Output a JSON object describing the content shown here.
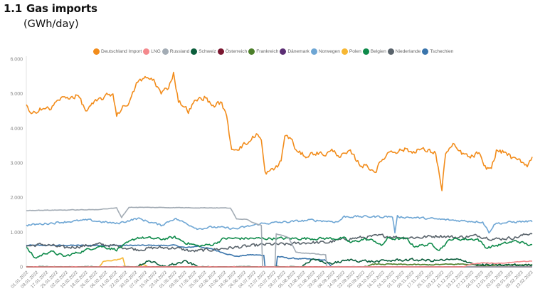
{
  "header": {
    "section_number": "1.1",
    "title": "Gas imports",
    "unit": "(GWh/day)"
  },
  "chart_data": {
    "type": "line",
    "title": "Gas imports",
    "ylabel": "GWh/day",
    "xlabel": "",
    "ylim": [
      0,
      6000
    ],
    "y_ticks": [
      0,
      1000,
      2000,
      3000,
      4000,
      5000,
      6000
    ],
    "y_tick_labels": [
      "0",
      "1.000",
      "2.000",
      "3.000",
      "4.000",
      "5.000",
      "6.000"
    ],
    "grid": false,
    "legend_position": "top-center",
    "x_range": [
      "01.01.2022",
      "14.02.2023"
    ],
    "x_tick_labels": [
      "01.01.2022",
      "09.01.2022",
      "17.01.2022",
      "25.01.2022",
      "02.02.2022",
      "10.02.2022",
      "18.02.2022",
      "26.02.2022",
      "06.03.2022",
      "14.03.2022",
      "22.03.2022",
      "30.03.2022",
      "07.04.2022",
      "15.04.2022",
      "23.04.2022",
      "01.05.2022",
      "09.05.2022",
      "17.05.2022",
      "25.05.2022",
      "02.06.2022",
      "10.06.2022",
      "18.06.2022",
      "26.06.2022",
      "04.07.2022",
      "12.07.2022",
      "20.07.2022",
      "28.07.2022",
      "05.08.2022",
      "13.08.2022",
      "21.08.2022",
      "29.08.2022",
      "06.09.2022",
      "14.09.2022",
      "22.09.2022",
      "30.09.2022",
      "08.10.2022",
      "16.10.2022",
      "24.10.2022",
      "01.11.2022",
      "09.11.2022",
      "17.11.2022",
      "25.11.2022",
      "03.12.2022",
      "11.12.2022",
      "19.12.2022",
      "27.12.2022",
      "04.01.2023",
      "12.01.2023",
      "20.01.2023",
      "28.01.2023",
      "05.02.2023",
      "13.02.2023"
    ],
    "series": [
      {
        "name": "Deutschland Import",
        "color": "#F28C1B",
        "noise": 90,
        "points": [
          [
            "01.01.2022",
            4650
          ],
          [
            "05.01.2022",
            4350
          ],
          [
            "12.01.2022",
            4600
          ],
          [
            "20.01.2022",
            4550
          ],
          [
            "28.01.2022",
            4850
          ],
          [
            "05.02.2022",
            4900
          ],
          [
            "12.02.2022",
            4950
          ],
          [
            "18.02.2022",
            4500
          ],
          [
            "24.02.2022",
            4700
          ],
          [
            "02.03.2022",
            4850
          ],
          [
            "08.03.2022",
            4950
          ],
          [
            "12.03.2022",
            5000
          ],
          [
            "15.03.2022",
            4400
          ],
          [
            "20.03.2022",
            4600
          ],
          [
            "26.03.2022",
            4800
          ],
          [
            "01.04.2022",
            5350
          ],
          [
            "08.04.2022",
            5450
          ],
          [
            "14.04.2022",
            5400
          ],
          [
            "20.04.2022",
            5000
          ],
          [
            "26.04.2022",
            5200
          ],
          [
            "30.04.2022",
            5600
          ],
          [
            "04.05.2022",
            4800
          ],
          [
            "12.05.2022",
            4500
          ],
          [
            "18.05.2022",
            4800
          ],
          [
            "25.05.2022",
            4900
          ],
          [
            "01.06.2022",
            4650
          ],
          [
            "08.06.2022",
            4750
          ],
          [
            "12.06.2022",
            4300
          ],
          [
            "16.06.2022",
            3400
          ],
          [
            "22.06.2022",
            3450
          ],
          [
            "30.06.2022",
            3600
          ],
          [
            "06.07.2022",
            3850
          ],
          [
            "10.07.2022",
            3650
          ],
          [
            "13.07.2022",
            2700
          ],
          [
            "20.07.2022",
            2800
          ],
          [
            "26.07.2022",
            3050
          ],
          [
            "29.07.2022",
            3800
          ],
          [
            "03.08.2022",
            3700
          ],
          [
            "08.08.2022",
            3300
          ],
          [
            "16.08.2022",
            3200
          ],
          [
            "22.08.2022",
            3300
          ],
          [
            "30.08.2022",
            3250
          ],
          [
            "06.09.2022",
            3350
          ],
          [
            "12.09.2022",
            3200
          ],
          [
            "20.09.2022",
            3300
          ],
          [
            "28.09.2022",
            2950
          ],
          [
            "04.10.2022",
            2900
          ],
          [
            "10.10.2022",
            2750
          ],
          [
            "16.10.2022",
            3100
          ],
          [
            "22.10.2022",
            3350
          ],
          [
            "28.10.2022",
            3350
          ],
          [
            "04.11.2022",
            3400
          ],
          [
            "09.11.2022",
            3300
          ],
          [
            "13.11.2022",
            3400
          ],
          [
            "21.11.2022",
            3350
          ],
          [
            "28.11.2022",
            3300
          ],
          [
            "03.12.2022",
            2200
          ],
          [
            "06.12.2022",
            3300
          ],
          [
            "12.12.2022",
            3500
          ],
          [
            "18.12.2022",
            3300
          ],
          [
            "26.12.2022",
            3150
          ],
          [
            "02.01.2023",
            3300
          ],
          [
            "06.01.2023",
            2850
          ],
          [
            "12.01.2023",
            2850
          ],
          [
            "16.01.2023",
            3350
          ],
          [
            "24.01.2023",
            3300
          ],
          [
            "30.01.2023",
            3100
          ],
          [
            "05.02.2023",
            3050
          ],
          [
            "10.02.2023",
            2950
          ],
          [
            "15.02.2023",
            3200
          ]
        ]
      },
      {
        "name": "LNG",
        "color": "#F4898D",
        "noise": 15,
        "points": [
          [
            "01.01.2022",
            0
          ],
          [
            "20.12.2022",
            0
          ],
          [
            "28.12.2022",
            90
          ],
          [
            "06.01.2023",
            120
          ],
          [
            "16.01.2023",
            100
          ],
          [
            "26.01.2023",
            120
          ],
          [
            "05.02.2023",
            150
          ],
          [
            "15.02.2023",
            170
          ]
        ]
      },
      {
        "name": "Russland",
        "color": "#A3ACB5",
        "noise": 10,
        "points": [
          [
            "01.01.2022",
            1630
          ],
          [
            "25.02.2022",
            1650
          ],
          [
            "15.03.2022",
            1700
          ],
          [
            "19.03.2022",
            1430
          ],
          [
            "25.03.2022",
            1720
          ],
          [
            "15.06.2022",
            1700
          ],
          [
            "20.06.2022",
            1380
          ],
          [
            "28.06.2022",
            1380
          ],
          [
            "02.07.2022",
            1300
          ],
          [
            "10.07.2022",
            1200
          ],
          [
            "11.07.2022",
            0
          ],
          [
            "21.07.2022",
            0
          ],
          [
            "22.07.2022",
            950
          ],
          [
            "01.08.2022",
            850
          ],
          [
            "07.08.2022",
            420
          ],
          [
            "31.08.2022",
            350
          ],
          [
            "01.09.2022",
            0
          ],
          [
            "15.02.2023",
            0
          ]
        ]
      },
      {
        "name": "Schweiz",
        "color": "#0C5E3C",
        "noise": 50,
        "points": [
          [
            "01.01.2022",
            0
          ],
          [
            "01.04.2022",
            0
          ],
          [
            "10.04.2022",
            200
          ],
          [
            "20.04.2022",
            0
          ],
          [
            "10.05.2022",
            150
          ],
          [
            "20.05.2022",
            0
          ],
          [
            "10.08.2022",
            0
          ],
          [
            "20.08.2022",
            200
          ],
          [
            "05.09.2022",
            100
          ],
          [
            "20.09.2022",
            200
          ],
          [
            "10.10.2022",
            150
          ],
          [
            "30.10.2022",
            200
          ],
          [
            "15.11.2022",
            200
          ],
          [
            "25.11.2022",
            180
          ],
          [
            "10.12.2022",
            200
          ],
          [
            "20.12.2022",
            200
          ],
          [
            "01.01.2023",
            50
          ],
          [
            "15.02.2023",
            50
          ]
        ]
      },
      {
        "name": "Österreich",
        "color": "#7A1730",
        "noise": 8,
        "points": [
          [
            "01.01.2022",
            0
          ],
          [
            "15.02.2023",
            0
          ]
        ]
      },
      {
        "name": "Frankreich",
        "color": "#4C7F2A",
        "noise": 20,
        "points": [
          [
            "01.01.2022",
            0
          ],
          [
            "01.10.2022",
            0
          ],
          [
            "10.10.2022",
            80
          ],
          [
            "20.11.2022",
            60
          ],
          [
            "20.12.2022",
            80
          ],
          [
            "05.01.2023",
            40
          ],
          [
            "28.01.2023",
            60
          ],
          [
            "15.02.2023",
            60
          ]
        ]
      },
      {
        "name": "Dänemark",
        "color": "#5C2E74",
        "noise": 6,
        "points": [
          [
            "01.01.2022",
            0
          ],
          [
            "15.02.2023",
            0
          ]
        ]
      },
      {
        "name": "Norwegen",
        "color": "#6EA6D4",
        "noise": 40,
        "points": [
          [
            "01.01.2022",
            1200
          ],
          [
            "01.02.2022",
            1300
          ],
          [
            "20.02.2022",
            1350
          ],
          [
            "15.03.2022",
            1250
          ],
          [
            "01.04.2022",
            1400
          ],
          [
            "20.04.2022",
            1200
          ],
          [
            "01.05.2022",
            1400
          ],
          [
            "20.05.2022",
            1100
          ],
          [
            "01.06.2022",
            1150
          ],
          [
            "20.06.2022",
            1100
          ],
          [
            "10.07.2022",
            1250
          ],
          [
            "01.08.2022",
            1300
          ],
          [
            "20.08.2022",
            1350
          ],
          [
            "10.09.2022",
            1300
          ],
          [
            "15.09.2022",
            1450
          ],
          [
            "20.10.2022",
            1450
          ],
          [
            "24.10.2022",
            1450
          ],
          [
            "26.10.2022",
            1000
          ],
          [
            "28.10.2022",
            1450
          ],
          [
            "20.11.2022",
            1400
          ],
          [
            "10.12.2022",
            1350
          ],
          [
            "05.01.2023",
            1300
          ],
          [
            "10.01.2023",
            1000
          ],
          [
            "15.01.2023",
            1250
          ],
          [
            "01.02.2023",
            1300
          ],
          [
            "15.02.2023",
            1320
          ]
        ]
      },
      {
        "name": "Polen",
        "color": "#F7B733",
        "noise": 15,
        "points": [
          [
            "01.01.2022",
            0
          ],
          [
            "01.03.2022",
            0
          ],
          [
            "04.03.2022",
            150
          ],
          [
            "15.03.2022",
            200
          ],
          [
            "20.03.2022",
            250
          ],
          [
            "22.03.2022",
            0
          ],
          [
            "02.04.2022",
            0
          ],
          [
            "05.04.2022",
            80
          ],
          [
            "10.04.2022",
            0
          ],
          [
            "15.02.2023",
            0
          ]
        ]
      },
      {
        "name": "Belgien",
        "color": "#0E8A4A",
        "noise": 50,
        "points": [
          [
            "01.01.2022",
            550
          ],
          [
            "08.01.2022",
            250
          ],
          [
            "20.01.2022",
            450
          ],
          [
            "01.02.2022",
            300
          ],
          [
            "15.02.2022",
            450
          ],
          [
            "01.03.2022",
            600
          ],
          [
            "15.03.2022",
            500
          ],
          [
            "01.04.2022",
            850
          ],
          [
            "20.04.2022",
            800
          ],
          [
            "01.05.2022",
            850
          ],
          [
            "10.05.2022",
            700
          ],
          [
            "20.05.2022",
            600
          ],
          [
            "01.06.2022",
            650
          ],
          [
            "10.06.2022",
            820
          ],
          [
            "15.09.2022",
            820
          ],
          [
            "20.09.2022",
            700
          ],
          [
            "01.10.2022",
            800
          ],
          [
            "10.10.2022",
            750
          ],
          [
            "15.10.2022",
            600
          ],
          [
            "20.10.2022",
            820
          ],
          [
            "05.11.2022",
            800
          ],
          [
            "10.11.2022",
            600
          ],
          [
            "25.11.2022",
            650
          ],
          [
            "01.12.2022",
            500
          ],
          [
            "10.12.2022",
            800
          ],
          [
            "01.01.2023",
            800
          ],
          [
            "08.01.2023",
            550
          ],
          [
            "20.01.2023",
            650
          ],
          [
            "01.02.2023",
            750
          ],
          [
            "15.02.2023",
            600
          ]
        ]
      },
      {
        "name": "Niederlande",
        "color": "#59636B",
        "noise": 60,
        "points": [
          [
            "01.01.2022",
            600
          ],
          [
            "15.01.2022",
            650
          ],
          [
            "01.02.2022",
            550
          ],
          [
            "15.02.2022",
            600
          ],
          [
            "01.03.2022",
            650
          ],
          [
            "15.03.2022",
            600
          ],
          [
            "01.04.2022",
            500
          ],
          [
            "15.04.2022",
            550
          ],
          [
            "01.05.2022",
            550
          ],
          [
            "15.05.2022",
            450
          ],
          [
            "01.06.2022",
            500
          ],
          [
            "15.06.2022",
            550
          ],
          [
            "01.07.2022",
            600
          ],
          [
            "15.07.2022",
            650
          ],
          [
            "01.08.2022",
            650
          ],
          [
            "15.08.2022",
            700
          ],
          [
            "01.09.2022",
            700
          ],
          [
            "15.09.2022",
            800
          ],
          [
            "01.10.2022",
            850
          ],
          [
            "15.10.2022",
            900
          ],
          [
            "01.11.2022",
            850
          ],
          [
            "15.11.2022",
            850
          ],
          [
            "01.12.2022",
            900
          ],
          [
            "15.12.2022",
            850
          ],
          [
            "01.01.2023",
            900
          ],
          [
            "15.01.2023",
            800
          ],
          [
            "01.02.2023",
            850
          ],
          [
            "15.02.2023",
            1000
          ]
        ]
      },
      {
        "name": "Tschechien",
        "color": "#3A75AC",
        "noise": 20,
        "points": [
          [
            "01.01.2022",
            620
          ],
          [
            "01.05.2022",
            620
          ],
          [
            "10.05.2022",
            550
          ],
          [
            "20.05.2022",
            600
          ],
          [
            "01.06.2022",
            500
          ],
          [
            "10.06.2022",
            400
          ],
          [
            "20.06.2022",
            300
          ],
          [
            "01.07.2022",
            350
          ],
          [
            "12.07.2022",
            330
          ],
          [
            "13.07.2022",
            0
          ],
          [
            "22.07.2022",
            0
          ],
          [
            "23.07.2022",
            300
          ],
          [
            "01.08.2022",
            250
          ],
          [
            "30.08.2022",
            200
          ],
          [
            "05.09.2022",
            0
          ],
          [
            "15.02.2023",
            0
          ]
        ]
      }
    ]
  }
}
